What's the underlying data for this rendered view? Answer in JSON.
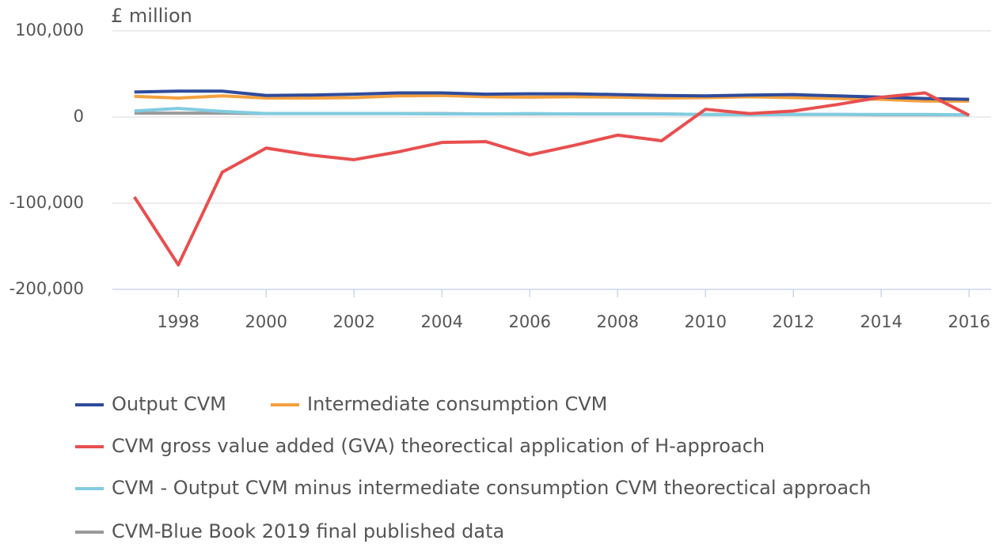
{
  "chart_data": {
    "type": "line",
    "y_axis_label": "£ million",
    "x": [
      1997,
      1998,
      1999,
      2000,
      2001,
      2002,
      2003,
      2004,
      2005,
      2006,
      2007,
      2008,
      2009,
      2010,
      2011,
      2012,
      2013,
      2014,
      2015,
      2016
    ],
    "xlim": [
      1996.5,
      2016.5
    ],
    "xticks": [
      1998,
      2000,
      2002,
      2004,
      2006,
      2008,
      2010,
      2012,
      2014,
      2016
    ],
    "ylim": [
      -200000,
      100000
    ],
    "yticks": [
      {
        "value": -200000,
        "label": "-200,000"
      },
      {
        "value": -100000,
        "label": "-100,000"
      },
      0,
      {
        "value": 100000,
        "label": "100,000"
      }
    ],
    "grid": true,
    "legend": "bottom",
    "series": [
      {
        "name": "Output CVM",
        "color": "#2f4b9b",
        "values": [
          29000,
          30000,
          30000,
          25000,
          25500,
          26500,
          28000,
          28000,
          26500,
          27000,
          27000,
          26000,
          25000,
          24500,
          25500,
          26000,
          24500,
          23000,
          21500,
          20500
        ]
      },
      {
        "name": "Intermediate consumption CVM",
        "color": "#f4a03e",
        "values": [
          24000,
          22000,
          24500,
          22000,
          22000,
          22500,
          24500,
          25000,
          23500,
          23000,
          23500,
          23000,
          22000,
          22500,
          23500,
          22500,
          21500,
          20500,
          18500,
          18500
        ]
      },
      {
        "name": "CVM gross value added (GVA) theorectical application of H-approach",
        "color": "#e84f4f",
        "values": [
          -92700,
          -171500,
          -64000,
          -36000,
          -44000,
          -49500,
          -40500,
          -29500,
          -28500,
          -44000,
          -33000,
          -21000,
          -27500,
          9000,
          4000,
          7000,
          14500,
          23000,
          28000,
          2000
        ]
      },
      {
        "name": "CVM - Output CVM minus intermediate consumption CVM theorectical approach",
        "color": "#80cce0",
        "values": [
          7000,
          10000,
          6500,
          4000,
          4000,
          4000,
          4000,
          3500,
          3500,
          4000,
          3500,
          3500,
          3500,
          3000,
          2500,
          3000,
          3000,
          3000,
          3000,
          2500
        ]
      },
      {
        "name": "CVM-Blue Book 2019 final published data",
        "color": "#9a9a9a",
        "values": [
          4500,
          4500,
          4500,
          4000,
          4000,
          4000,
          4000,
          4000,
          3500,
          3500,
          3500,
          3500,
          3500,
          3000,
          3000,
          3000,
          3000,
          2500,
          2500,
          2500
        ]
      }
    ]
  }
}
